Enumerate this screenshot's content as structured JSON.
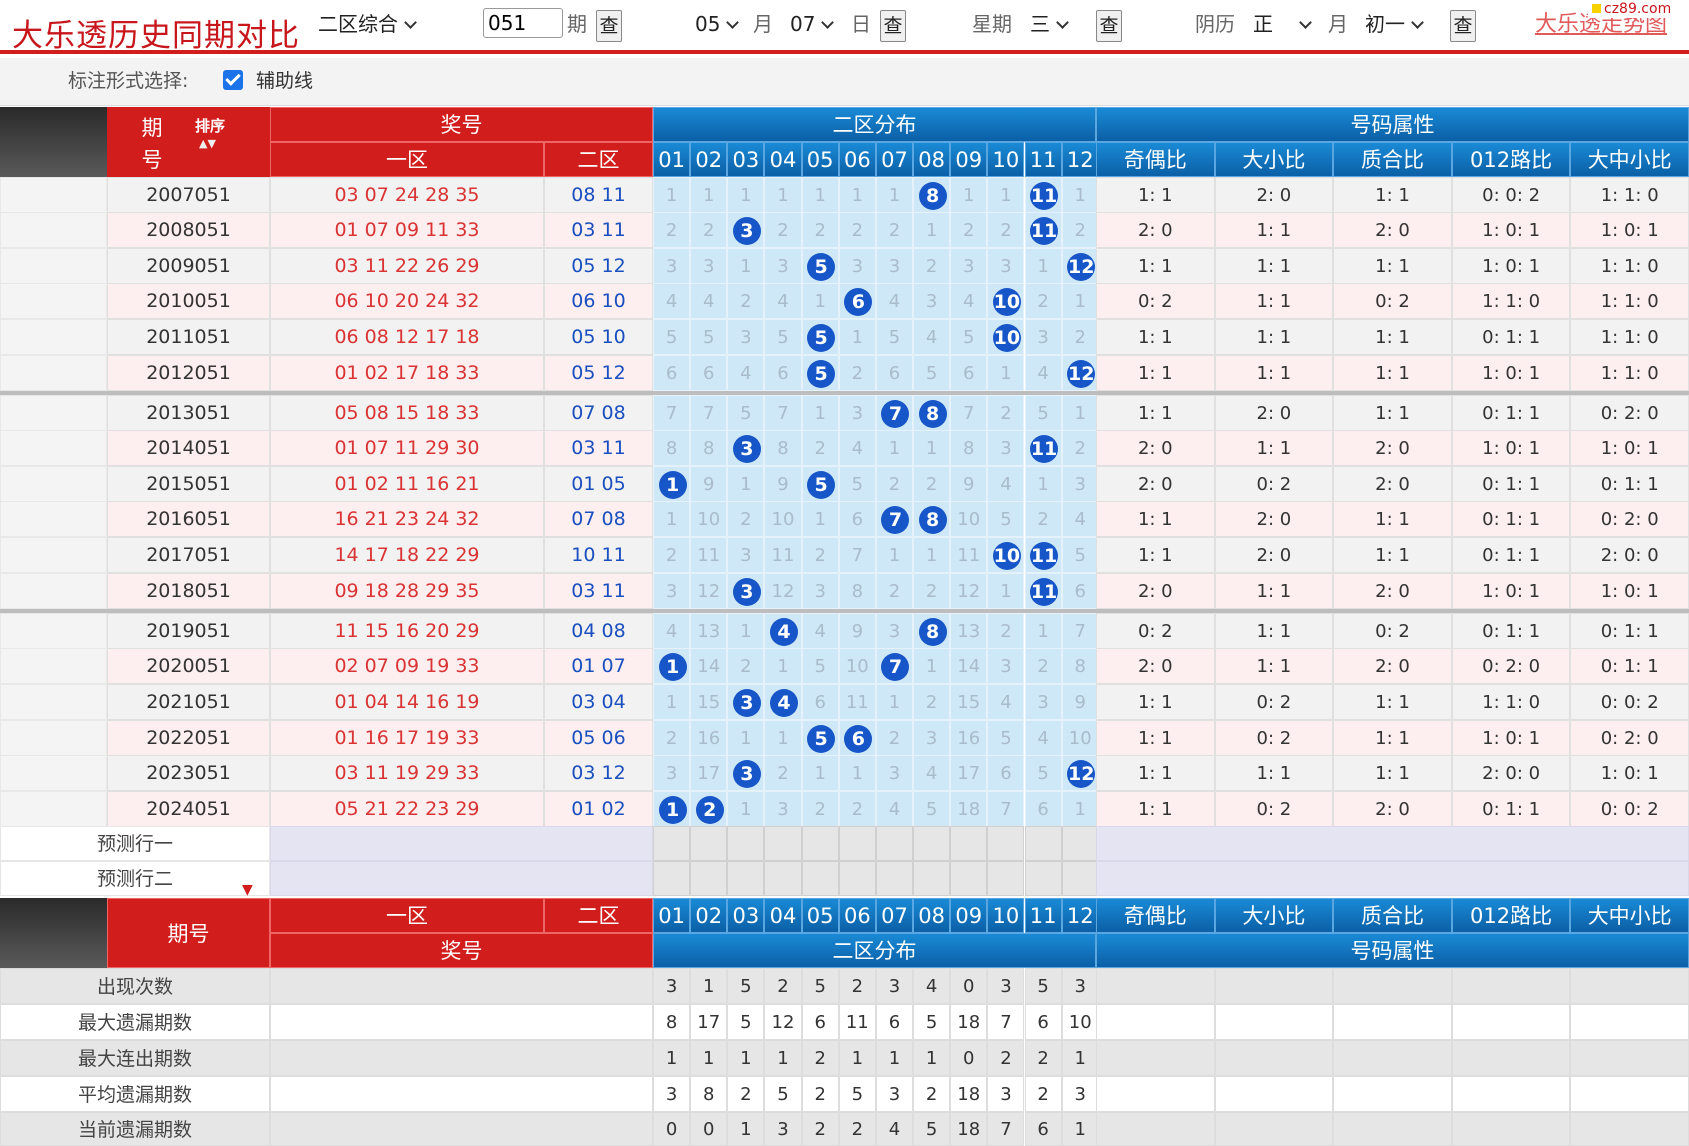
{
  "header": {
    "title": "大乐透历史同期对比",
    "zone_select": "二区综合",
    "issue_value": "051",
    "issue_unit": "期",
    "query_label": "查",
    "month_value": "05",
    "month_unit": "月",
    "day_value": "07",
    "day_unit": "日",
    "week_label": "星期",
    "week_value": "三",
    "lunar_label": "阴历",
    "lunar_month": "正",
    "lunar_month_unit": "月",
    "lunar_day": "初一",
    "right_link": "大乐透走势图",
    "watermark": "cz89.com"
  },
  "options": {
    "label": "标注形式选择:",
    "aux_line_label": "辅助线",
    "aux_line_checked": true
  },
  "table": {
    "top_headers": {
      "issue": "期号",
      "sort": "排序",
      "prize": "奖号",
      "zone1": "一区",
      "zone2": "二区",
      "distribution": "二区分布",
      "attributes": "号码属性"
    },
    "columns": [
      "01",
      "02",
      "03",
      "04",
      "05",
      "06",
      "07",
      "08",
      "09",
      "10",
      "11",
      "12"
    ],
    "attr_columns": [
      "奇偶比",
      "大小比",
      "质合比",
      "012路比",
      "大中小比"
    ],
    "rows": [
      {
        "issue": "2007051",
        "front": "03 07 24 28 35",
        "back": "08 11",
        "dist": [
          "1",
          "1",
          "1",
          "1",
          "1",
          "1",
          "1",
          "8",
          "1",
          "1",
          "11",
          "1"
        ],
        "hits": [
          8,
          11
        ],
        "attrs": [
          "1: 1",
          "2: 0",
          "1: 1",
          "0: 0: 2",
          "1: 1: 0"
        ]
      },
      {
        "issue": "2008051",
        "front": "01 07 09 11 33",
        "back": "03 11",
        "dist": [
          "2",
          "2",
          "3",
          "2",
          "2",
          "2",
          "2",
          "1",
          "2",
          "2",
          "11",
          "2"
        ],
        "hits": [
          3,
          11
        ],
        "attrs": [
          "2: 0",
          "1: 1",
          "2: 0",
          "1: 0: 1",
          "1: 0: 1"
        ]
      },
      {
        "issue": "2009051",
        "front": "03 11 22 26 29",
        "back": "05 12",
        "dist": [
          "3",
          "3",
          "1",
          "3",
          "5",
          "3",
          "3",
          "2",
          "3",
          "3",
          "1",
          "12"
        ],
        "hits": [
          5,
          12
        ],
        "attrs": [
          "1: 1",
          "1: 1",
          "1: 1",
          "1: 0: 1",
          "1: 1: 0"
        ]
      },
      {
        "issue": "2010051",
        "front": "06 10 20 24 32",
        "back": "06 10",
        "dist": [
          "4",
          "4",
          "2",
          "4",
          "1",
          "6",
          "4",
          "3",
          "4",
          "10",
          "2",
          "1"
        ],
        "hits": [
          6,
          10
        ],
        "attrs": [
          "0: 2",
          "1: 1",
          "0: 2",
          "1: 1: 0",
          "1: 1: 0"
        ]
      },
      {
        "issue": "2011051",
        "front": "06 08 12 17 18",
        "back": "05 10",
        "dist": [
          "5",
          "5",
          "3",
          "5",
          "5",
          "1",
          "5",
          "4",
          "5",
          "10",
          "3",
          "2"
        ],
        "hits": [
          5,
          10
        ],
        "attrs": [
          "1: 1",
          "1: 1",
          "1: 1",
          "0: 1: 1",
          "1: 1: 0"
        ]
      },
      {
        "issue": "2012051",
        "front": "01 02 17 18 33",
        "back": "05 12",
        "dist": [
          "6",
          "6",
          "4",
          "6",
          "5",
          "2",
          "6",
          "5",
          "6",
          "1",
          "4",
          "12"
        ],
        "hits": [
          5,
          12
        ],
        "attrs": [
          "1: 1",
          "1: 1",
          "1: 1",
          "1: 0: 1",
          "1: 1: 0"
        ]
      },
      {
        "issue": "2013051",
        "front": "05 08 15 18 33",
        "back": "07 08",
        "dist": [
          "7",
          "7",
          "5",
          "7",
          "1",
          "3",
          "7",
          "8",
          "7",
          "2",
          "5",
          "1"
        ],
        "hits": [
          7,
          8
        ],
        "attrs": [
          "1: 1",
          "2: 0",
          "1: 1",
          "0: 1: 1",
          "0: 2: 0"
        ]
      },
      {
        "issue": "2014051",
        "front": "01 07 11 29 30",
        "back": "03 11",
        "dist": [
          "8",
          "8",
          "3",
          "8",
          "2",
          "4",
          "1",
          "1",
          "8",
          "3",
          "11",
          "2"
        ],
        "hits": [
          3,
          11
        ],
        "attrs": [
          "2: 0",
          "1: 1",
          "2: 0",
          "1: 0: 1",
          "1: 0: 1"
        ]
      },
      {
        "issue": "2015051",
        "front": "01 02 11 16 21",
        "back": "01 05",
        "dist": [
          "1",
          "9",
          "1",
          "9",
          "5",
          "5",
          "2",
          "2",
          "9",
          "4",
          "1",
          "3"
        ],
        "hits": [
          1,
          5
        ],
        "attrs": [
          "2: 0",
          "0: 2",
          "2: 0",
          "0: 1: 1",
          "0: 1: 1"
        ]
      },
      {
        "issue": "2016051",
        "front": "16 21 23 24 32",
        "back": "07 08",
        "dist": [
          "1",
          "10",
          "2",
          "10",
          "1",
          "6",
          "7",
          "8",
          "10",
          "5",
          "2",
          "4"
        ],
        "hits": [
          7,
          8
        ],
        "attrs": [
          "1: 1",
          "2: 0",
          "1: 1",
          "0: 1: 1",
          "0: 2: 0"
        ]
      },
      {
        "issue": "2017051",
        "front": "14 17 18 22 29",
        "back": "10 11",
        "dist": [
          "2",
          "11",
          "3",
          "11",
          "2",
          "7",
          "1",
          "1",
          "11",
          "10",
          "11",
          "5"
        ],
        "hits": [
          10,
          11
        ],
        "attrs": [
          "1: 1",
          "2: 0",
          "1: 1",
          "0: 1: 1",
          "2: 0: 0"
        ]
      },
      {
        "issue": "2018051",
        "front": "09 18 28 29 35",
        "back": "03 11",
        "dist": [
          "3",
          "12",
          "3",
          "12",
          "3",
          "8",
          "2",
          "2",
          "12",
          "1",
          "11",
          "6"
        ],
        "hits": [
          3,
          11
        ],
        "attrs": [
          "2: 0",
          "1: 1",
          "2: 0",
          "1: 0: 1",
          "1: 0: 1"
        ]
      },
      {
        "issue": "2019051",
        "front": "11 15 16 20 29",
        "back": "04 08",
        "dist": [
          "4",
          "13",
          "1",
          "4",
          "4",
          "9",
          "3",
          "8",
          "13",
          "2",
          "1",
          "7"
        ],
        "hits": [
          4,
          8
        ],
        "attrs": [
          "0: 2",
          "1: 1",
          "0: 2",
          "0: 1: 1",
          "0: 1: 1"
        ]
      },
      {
        "issue": "2020051",
        "front": "02 07 09 19 33",
        "back": "01 07",
        "dist": [
          "1",
          "14",
          "2",
          "1",
          "5",
          "10",
          "7",
          "1",
          "14",
          "3",
          "2",
          "8"
        ],
        "hits": [
          1,
          7
        ],
        "attrs": [
          "2: 0",
          "1: 1",
          "2: 0",
          "0: 2: 0",
          "0: 1: 1"
        ]
      },
      {
        "issue": "2021051",
        "front": "01 04 14 16 19",
        "back": "03 04",
        "dist": [
          "1",
          "15",
          "3",
          "4",
          "6",
          "11",
          "1",
          "2",
          "15",
          "4",
          "3",
          "9"
        ],
        "hits": [
          3,
          4
        ],
        "attrs": [
          "1: 1",
          "0: 2",
          "1: 1",
          "1: 1: 0",
          "0: 0: 2"
        ]
      },
      {
        "issue": "2022051",
        "front": "01 16 17 19 33",
        "back": "05 06",
        "dist": [
          "2",
          "16",
          "1",
          "1",
          "5",
          "6",
          "2",
          "3",
          "16",
          "5",
          "4",
          "10"
        ],
        "hits": [
          5,
          6
        ],
        "attrs": [
          "1: 1",
          "0: 2",
          "1: 1",
          "1: 0: 1",
          "0: 2: 0"
        ]
      },
      {
        "issue": "2023051",
        "front": "03 11 19 29 33",
        "back": "03 12",
        "dist": [
          "3",
          "17",
          "3",
          "2",
          "1",
          "1",
          "3",
          "4",
          "17",
          "6",
          "5",
          "12"
        ],
        "hits": [
          3,
          12
        ],
        "attrs": [
          "1: 1",
          "1: 1",
          "1: 1",
          "2: 0: 0",
          "1: 0: 1"
        ]
      },
      {
        "issue": "2024051",
        "front": "05 21 22 23 29",
        "back": "01 02",
        "dist": [
          "1",
          "2",
          "1",
          "3",
          "2",
          "2",
          "4",
          "5",
          "18",
          "7",
          "6",
          "1"
        ],
        "hits": [
          1,
          2
        ],
        "attrs": [
          "1: 1",
          "0: 2",
          "2: 0",
          "0: 1: 1",
          "0: 0: 2"
        ]
      }
    ],
    "predict_rows": [
      "预测行一",
      "预测行二"
    ],
    "footer_headers": {
      "issue": "期号",
      "zone1": "一区",
      "zone2": "二区",
      "prize": "奖号",
      "distribution": "二区分布",
      "attributes": "号码属性"
    },
    "stats": [
      {
        "label": "出现次数",
        "values": [
          "3",
          "1",
          "5",
          "2",
          "5",
          "2",
          "3",
          "4",
          "0",
          "3",
          "5",
          "3"
        ]
      },
      {
        "label": "最大遗漏期数",
        "values": [
          "8",
          "17",
          "5",
          "12",
          "6",
          "11",
          "6",
          "5",
          "18",
          "7",
          "6",
          "10"
        ]
      },
      {
        "label": "最大连出期数",
        "values": [
          "1",
          "1",
          "1",
          "1",
          "2",
          "1",
          "1",
          "1",
          "0",
          "2",
          "2",
          "1"
        ]
      },
      {
        "label": "平均遗漏期数",
        "values": [
          "3",
          "8",
          "2",
          "5",
          "2",
          "5",
          "3",
          "2",
          "18",
          "3",
          "2",
          "3"
        ]
      },
      {
        "label": "当前遗漏期数",
        "values": [
          "0",
          "0",
          "1",
          "3",
          "2",
          "2",
          "4",
          "5",
          "18",
          "7",
          "6",
          "1"
        ]
      }
    ]
  },
  "colors": {
    "red": "#d21d1d",
    "blue": "#0b6fc0",
    "ball": "#1756c8",
    "front_text": "#d93333",
    "back_text": "#1a4fbf",
    "dist_bg": "#cfe8f7",
    "row_alt_pink": "#fdeef0",
    "row_alt_gray": "#f2f2f2"
  }
}
